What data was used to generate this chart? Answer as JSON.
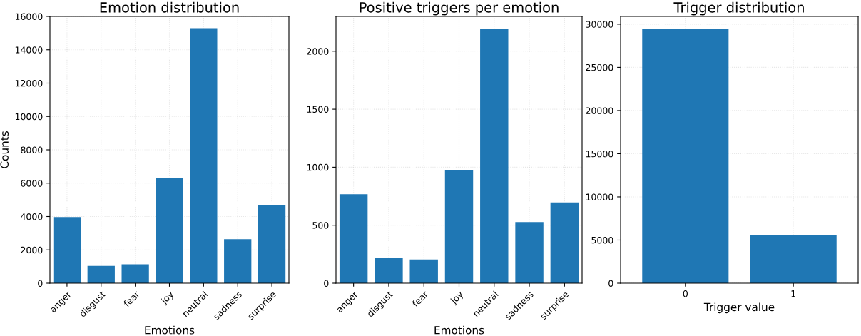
{
  "chart_data": [
    {
      "type": "bar",
      "title": "Emotion distribution",
      "xlabel": "Emotions",
      "ylabel": "Counts",
      "categories": [
        "anger",
        "disgust",
        "fear",
        "joy",
        "neutral",
        "sadness",
        "surprise"
      ],
      "values": [
        3970,
        1040,
        1130,
        6320,
        15290,
        2640,
        4670
      ],
      "color": "#1f77b4",
      "ylim": [
        0,
        16000
      ],
      "yticks": [
        0,
        2000,
        4000,
        6000,
        8000,
        10000,
        12000,
        14000,
        16000
      ],
      "grid": true
    },
    {
      "type": "bar",
      "title": "Positive triggers per emotion",
      "xlabel": "Emotions",
      "categories": [
        "anger",
        "disgust",
        "fear",
        "joy",
        "neutral",
        "sadness",
        "surprise"
      ],
      "values": [
        767,
        219,
        204,
        975,
        2190,
        528,
        697
      ],
      "color": "#1f77b4",
      "ylim": [
        0,
        2300
      ],
      "yticks": [
        0,
        500,
        1000,
        1500,
        2000
      ],
      "grid": true
    },
    {
      "type": "bar",
      "title": "Trigger distribution",
      "xlabel": "Trigger value",
      "categories": [
        "0",
        "1"
      ],
      "values": [
        29420,
        5580
      ],
      "color": "#1f77b4",
      "ylim": [
        0,
        30900
      ],
      "yticks": [
        0,
        5000,
        10000,
        15000,
        20000,
        25000,
        30000
      ],
      "grid": true
    }
  ]
}
